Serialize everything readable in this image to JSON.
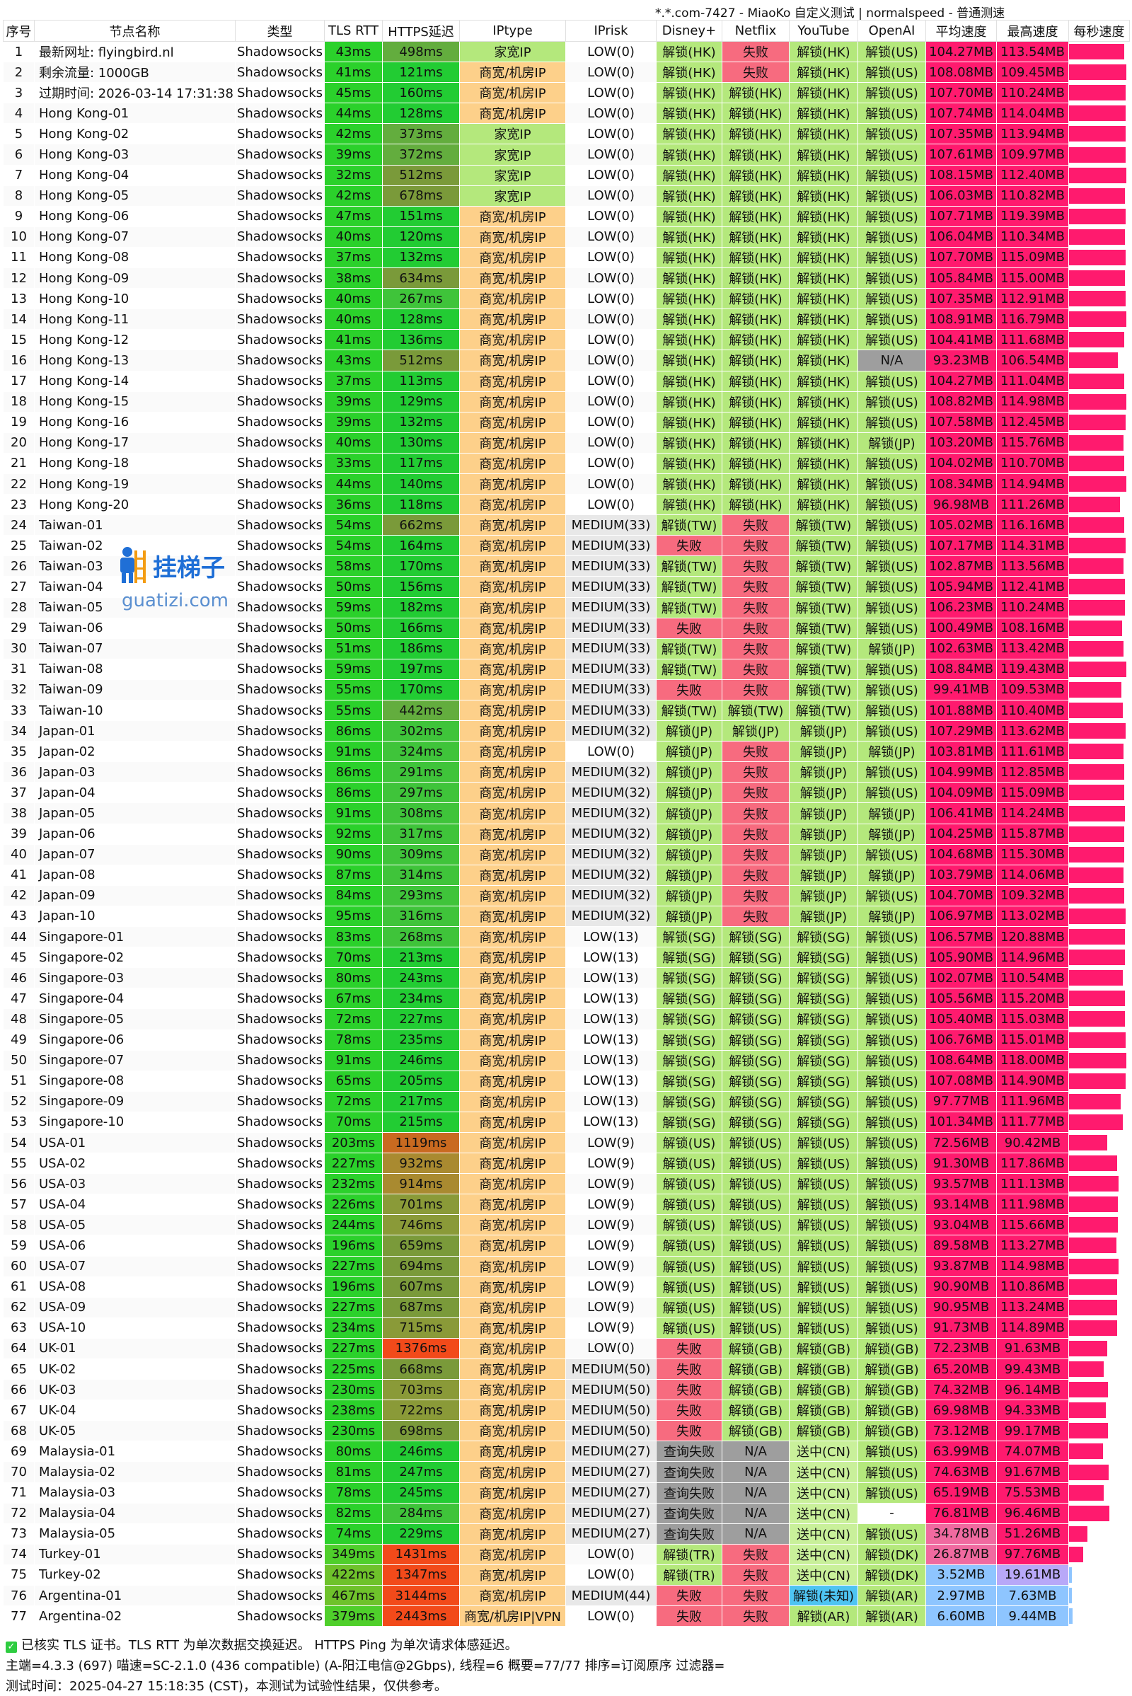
{
  "title": "*.*.com-7427 - MiaoKo 自定义测试 | normalspeed - 普通测速",
  "columns": [
    "序号",
    "节点名称",
    "类型",
    "TLS RTT",
    "HTTPS延迟",
    "IPtype",
    "IPrisk",
    "Disney+",
    "Netflix",
    "YouTube",
    "OpenAI",
    "平均速度",
    "最高速度",
    "每秒速度"
  ],
  "watermark": {
    "brand": "挂梯子",
    "domain": "guatizi.com"
  },
  "colors": {
    "green": "#19d419",
    "lightgreen": "#b4e87c",
    "orange": "#fdd08a",
    "red": "#f76b7f",
    "gray": "#9e9e9e",
    "pink": "#ff1a6e",
    "lavender": "#b8a8f8",
    "blue": "#8ec5ff"
  },
  "rows": [
    [
      "1",
      "最新网址: flyingbird.nl",
      "Shadowsocks",
      "43ms",
      "498ms",
      "家宽IP",
      "LOW(0)",
      "解锁(HK)",
      "失败",
      "解锁(HK)",
      "解锁(US)",
      "104.27MB",
      "113.54MB"
    ],
    [
      "2",
      "剩余流量: 1000GB",
      "Shadowsocks",
      "41ms",
      "121ms",
      "商宽/机房IP",
      "LOW(0)",
      "解锁(HK)",
      "失败",
      "解锁(HK)",
      "解锁(US)",
      "108.08MB",
      "109.45MB"
    ],
    [
      "3",
      "过期时间: 2026-03-14 17:31:38",
      "Shadowsocks",
      "45ms",
      "160ms",
      "商宽/机房IP",
      "LOW(0)",
      "解锁(HK)",
      "解锁(HK)",
      "解锁(HK)",
      "解锁(US)",
      "107.70MB",
      "110.24MB"
    ],
    [
      "4",
      "Hong Kong-01",
      "Shadowsocks",
      "44ms",
      "128ms",
      "商宽/机房IP",
      "LOW(0)",
      "解锁(HK)",
      "解锁(HK)",
      "解锁(HK)",
      "解锁(US)",
      "107.74MB",
      "114.04MB"
    ],
    [
      "5",
      "Hong Kong-02",
      "Shadowsocks",
      "42ms",
      "373ms",
      "家宽IP",
      "LOW(0)",
      "解锁(HK)",
      "解锁(HK)",
      "解锁(HK)",
      "解锁(US)",
      "107.35MB",
      "113.94MB"
    ],
    [
      "6",
      "Hong Kong-03",
      "Shadowsocks",
      "39ms",
      "372ms",
      "家宽IP",
      "LOW(0)",
      "解锁(HK)",
      "解锁(HK)",
      "解锁(HK)",
      "解锁(US)",
      "107.61MB",
      "109.97MB"
    ],
    [
      "7",
      "Hong Kong-04",
      "Shadowsocks",
      "32ms",
      "512ms",
      "家宽IP",
      "LOW(0)",
      "解锁(HK)",
      "解锁(HK)",
      "解锁(HK)",
      "解锁(US)",
      "108.15MB",
      "112.40MB"
    ],
    [
      "8",
      "Hong Kong-05",
      "Shadowsocks",
      "42ms",
      "678ms",
      "家宽IP",
      "LOW(0)",
      "解锁(HK)",
      "解锁(HK)",
      "解锁(HK)",
      "解锁(US)",
      "106.03MB",
      "110.82MB"
    ],
    [
      "9",
      "Hong Kong-06",
      "Shadowsocks",
      "47ms",
      "151ms",
      "商宽/机房IP",
      "LOW(0)",
      "解锁(HK)",
      "解锁(HK)",
      "解锁(HK)",
      "解锁(US)",
      "107.71MB",
      "119.39MB"
    ],
    [
      "10",
      "Hong Kong-07",
      "Shadowsocks",
      "40ms",
      "120ms",
      "商宽/机房IP",
      "LOW(0)",
      "解锁(HK)",
      "解锁(HK)",
      "解锁(HK)",
      "解锁(US)",
      "106.04MB",
      "110.34MB"
    ],
    [
      "11",
      "Hong Kong-08",
      "Shadowsocks",
      "37ms",
      "132ms",
      "商宽/机房IP",
      "LOW(0)",
      "解锁(HK)",
      "解锁(HK)",
      "解锁(HK)",
      "解锁(US)",
      "107.70MB",
      "115.09MB"
    ],
    [
      "12",
      "Hong Kong-09",
      "Shadowsocks",
      "38ms",
      "634ms",
      "商宽/机房IP",
      "LOW(0)",
      "解锁(HK)",
      "解锁(HK)",
      "解锁(HK)",
      "解锁(US)",
      "105.84MB",
      "115.00MB"
    ],
    [
      "13",
      "Hong Kong-10",
      "Shadowsocks",
      "40ms",
      "267ms",
      "商宽/机房IP",
      "LOW(0)",
      "解锁(HK)",
      "解锁(HK)",
      "解锁(HK)",
      "解锁(US)",
      "107.35MB",
      "112.91MB"
    ],
    [
      "14",
      "Hong Kong-11",
      "Shadowsocks",
      "40ms",
      "128ms",
      "商宽/机房IP",
      "LOW(0)",
      "解锁(HK)",
      "解锁(HK)",
      "解锁(HK)",
      "解锁(US)",
      "108.91MB",
      "116.79MB"
    ],
    [
      "15",
      "Hong Kong-12",
      "Shadowsocks",
      "41ms",
      "136ms",
      "商宽/机房IP",
      "LOW(0)",
      "解锁(HK)",
      "解锁(HK)",
      "解锁(HK)",
      "解锁(US)",
      "104.41MB",
      "111.68MB"
    ],
    [
      "16",
      "Hong Kong-13",
      "Shadowsocks",
      "43ms",
      "512ms",
      "商宽/机房IP",
      "LOW(0)",
      "解锁(HK)",
      "解锁(HK)",
      "解锁(HK)",
      "N/A",
      "93.23MB",
      "106.54MB"
    ],
    [
      "17",
      "Hong Kong-14",
      "Shadowsocks",
      "37ms",
      "113ms",
      "商宽/机房IP",
      "LOW(0)",
      "解锁(HK)",
      "解锁(HK)",
      "解锁(HK)",
      "解锁(US)",
      "104.27MB",
      "111.04MB"
    ],
    [
      "18",
      "Hong Kong-15",
      "Shadowsocks",
      "39ms",
      "129ms",
      "商宽/机房IP",
      "LOW(0)",
      "解锁(HK)",
      "解锁(HK)",
      "解锁(HK)",
      "解锁(US)",
      "108.82MB",
      "114.98MB"
    ],
    [
      "19",
      "Hong Kong-16",
      "Shadowsocks",
      "39ms",
      "132ms",
      "商宽/机房IP",
      "LOW(0)",
      "解锁(HK)",
      "解锁(HK)",
      "解锁(HK)",
      "解锁(US)",
      "107.58MB",
      "112.45MB"
    ],
    [
      "20",
      "Hong Kong-17",
      "Shadowsocks",
      "40ms",
      "130ms",
      "商宽/机房IP",
      "LOW(0)",
      "解锁(HK)",
      "解锁(HK)",
      "解锁(HK)",
      "解锁(JP)",
      "103.20MB",
      "115.76MB"
    ],
    [
      "21",
      "Hong Kong-18",
      "Shadowsocks",
      "33ms",
      "117ms",
      "商宽/机房IP",
      "LOW(0)",
      "解锁(HK)",
      "解锁(HK)",
      "解锁(HK)",
      "解锁(US)",
      "104.02MB",
      "110.70MB"
    ],
    [
      "22",
      "Hong Kong-19",
      "Shadowsocks",
      "44ms",
      "140ms",
      "商宽/机房IP",
      "LOW(0)",
      "解锁(HK)",
      "解锁(HK)",
      "解锁(HK)",
      "解锁(US)",
      "108.34MB",
      "114.94MB"
    ],
    [
      "23",
      "Hong Kong-20",
      "Shadowsocks",
      "36ms",
      "118ms",
      "商宽/机房IP",
      "LOW(0)",
      "解锁(HK)",
      "解锁(HK)",
      "解锁(HK)",
      "解锁(US)",
      "96.98MB",
      "111.26MB"
    ],
    [
      "24",
      "Taiwan-01",
      "Shadowsocks",
      "54ms",
      "662ms",
      "商宽/机房IP",
      "MEDIUM(33)",
      "解锁(TW)",
      "失败",
      "解锁(TW)",
      "解锁(US)",
      "105.02MB",
      "116.16MB"
    ],
    [
      "25",
      "Taiwan-02",
      "Shadowsocks",
      "54ms",
      "164ms",
      "商宽/机房IP",
      "MEDIUM(33)",
      "失败",
      "失败",
      "解锁(TW)",
      "解锁(US)",
      "107.17MB",
      "114.31MB"
    ],
    [
      "26",
      "Taiwan-03",
      "Shadowsocks",
      "58ms",
      "170ms",
      "商宽/机房IP",
      "MEDIUM(33)",
      "解锁(TW)",
      "失败",
      "解锁(TW)",
      "解锁(US)",
      "102.87MB",
      "113.56MB"
    ],
    [
      "27",
      "Taiwan-04",
      "Shadowsocks",
      "50ms",
      "156ms",
      "商宽/机房IP",
      "MEDIUM(33)",
      "解锁(TW)",
      "失败",
      "解锁(TW)",
      "解锁(US)",
      "105.94MB",
      "112.41MB"
    ],
    [
      "28",
      "Taiwan-05",
      "Shadowsocks",
      "59ms",
      "182ms",
      "商宽/机房IP",
      "MEDIUM(33)",
      "解锁(TW)",
      "失败",
      "解锁(TW)",
      "解锁(US)",
      "106.23MB",
      "110.24MB"
    ],
    [
      "29",
      "Taiwan-06",
      "Shadowsocks",
      "50ms",
      "166ms",
      "商宽/机房IP",
      "MEDIUM(33)",
      "失败",
      "失败",
      "解锁(TW)",
      "解锁(US)",
      "100.49MB",
      "108.16MB"
    ],
    [
      "30",
      "Taiwan-07",
      "Shadowsocks",
      "51ms",
      "186ms",
      "商宽/机房IP",
      "MEDIUM(33)",
      "解锁(TW)",
      "失败",
      "解锁(TW)",
      "解锁(JP)",
      "102.63MB",
      "113.42MB"
    ],
    [
      "31",
      "Taiwan-08",
      "Shadowsocks",
      "59ms",
      "197ms",
      "商宽/机房IP",
      "MEDIUM(33)",
      "解锁(TW)",
      "失败",
      "解锁(TW)",
      "解锁(US)",
      "108.84MB",
      "119.43MB"
    ],
    [
      "32",
      "Taiwan-09",
      "Shadowsocks",
      "55ms",
      "170ms",
      "商宽/机房IP",
      "MEDIUM(33)",
      "失败",
      "失败",
      "解锁(TW)",
      "解锁(US)",
      "99.41MB",
      "109.53MB"
    ],
    [
      "33",
      "Taiwan-10",
      "Shadowsocks",
      "55ms",
      "442ms",
      "商宽/机房IP",
      "MEDIUM(33)",
      "解锁(TW)",
      "解锁(TW)",
      "解锁(TW)",
      "解锁(US)",
      "101.88MB",
      "110.40MB"
    ],
    [
      "34",
      "Japan-01",
      "Shadowsocks",
      "86ms",
      "302ms",
      "商宽/机房IP",
      "MEDIUM(32)",
      "解锁(JP)",
      "解锁(JP)",
      "解锁(JP)",
      "解锁(US)",
      "107.29MB",
      "113.62MB"
    ],
    [
      "35",
      "Japan-02",
      "Shadowsocks",
      "91ms",
      "324ms",
      "商宽/机房IP",
      "LOW(0)",
      "解锁(JP)",
      "失败",
      "解锁(JP)",
      "解锁(JP)",
      "103.81MB",
      "111.61MB"
    ],
    [
      "36",
      "Japan-03",
      "Shadowsocks",
      "86ms",
      "291ms",
      "商宽/机房IP",
      "MEDIUM(32)",
      "解锁(JP)",
      "失败",
      "解锁(JP)",
      "解锁(US)",
      "104.99MB",
      "112.85MB"
    ],
    [
      "37",
      "Japan-04",
      "Shadowsocks",
      "86ms",
      "297ms",
      "商宽/机房IP",
      "MEDIUM(32)",
      "解锁(JP)",
      "失败",
      "解锁(JP)",
      "解锁(US)",
      "104.09MB",
      "115.09MB"
    ],
    [
      "38",
      "Japan-05",
      "Shadowsocks",
      "91ms",
      "308ms",
      "商宽/机房IP",
      "MEDIUM(32)",
      "解锁(JP)",
      "失败",
      "解锁(JP)",
      "解锁(JP)",
      "106.41MB",
      "114.24MB"
    ],
    [
      "39",
      "Japan-06",
      "Shadowsocks",
      "92ms",
      "317ms",
      "商宽/机房IP",
      "MEDIUM(32)",
      "解锁(JP)",
      "失败",
      "解锁(JP)",
      "解锁(JP)",
      "104.25MB",
      "115.87MB"
    ],
    [
      "40",
      "Japan-07",
      "Shadowsocks",
      "90ms",
      "309ms",
      "商宽/机房IP",
      "MEDIUM(32)",
      "解锁(JP)",
      "失败",
      "解锁(JP)",
      "解锁(US)",
      "104.68MB",
      "115.30MB"
    ],
    [
      "41",
      "Japan-08",
      "Shadowsocks",
      "87ms",
      "314ms",
      "商宽/机房IP",
      "MEDIUM(32)",
      "解锁(JP)",
      "失败",
      "解锁(JP)",
      "解锁(JP)",
      "103.79MB",
      "114.06MB"
    ],
    [
      "42",
      "Japan-09",
      "Shadowsocks",
      "84ms",
      "293ms",
      "商宽/机房IP",
      "MEDIUM(32)",
      "解锁(JP)",
      "失败",
      "解锁(JP)",
      "解锁(US)",
      "104.70MB",
      "109.32MB"
    ],
    [
      "43",
      "Japan-10",
      "Shadowsocks",
      "95ms",
      "316ms",
      "商宽/机房IP",
      "MEDIUM(32)",
      "解锁(JP)",
      "失败",
      "解锁(JP)",
      "解锁(JP)",
      "106.97MB",
      "113.02MB"
    ],
    [
      "44",
      "Singapore-01",
      "Shadowsocks",
      "83ms",
      "268ms",
      "商宽/机房IP",
      "LOW(13)",
      "解锁(SG)",
      "解锁(SG)",
      "解锁(SG)",
      "解锁(US)",
      "106.57MB",
      "120.88MB"
    ],
    [
      "45",
      "Singapore-02",
      "Shadowsocks",
      "70ms",
      "213ms",
      "商宽/机房IP",
      "LOW(13)",
      "解锁(SG)",
      "解锁(SG)",
      "解锁(SG)",
      "解锁(US)",
      "105.90MB",
      "114.96MB"
    ],
    [
      "46",
      "Singapore-03",
      "Shadowsocks",
      "80ms",
      "243ms",
      "商宽/机房IP",
      "LOW(13)",
      "解锁(SG)",
      "解锁(SG)",
      "解锁(SG)",
      "解锁(US)",
      "102.07MB",
      "110.54MB"
    ],
    [
      "47",
      "Singapore-04",
      "Shadowsocks",
      "67ms",
      "234ms",
      "商宽/机房IP",
      "LOW(13)",
      "解锁(SG)",
      "解锁(SG)",
      "解锁(SG)",
      "解锁(US)",
      "105.56MB",
      "115.20MB"
    ],
    [
      "48",
      "Singapore-05",
      "Shadowsocks",
      "72ms",
      "227ms",
      "商宽/机房IP",
      "LOW(13)",
      "解锁(SG)",
      "解锁(SG)",
      "解锁(SG)",
      "解锁(US)",
      "105.40MB",
      "115.03MB"
    ],
    [
      "49",
      "Singapore-06",
      "Shadowsocks",
      "78ms",
      "235ms",
      "商宽/机房IP",
      "LOW(13)",
      "解锁(SG)",
      "解锁(SG)",
      "解锁(SG)",
      "解锁(US)",
      "106.76MB",
      "115.01MB"
    ],
    [
      "50",
      "Singapore-07",
      "Shadowsocks",
      "91ms",
      "246ms",
      "商宽/机房IP",
      "LOW(13)",
      "解锁(SG)",
      "解锁(SG)",
      "解锁(SG)",
      "解锁(US)",
      "108.64MB",
      "118.00MB"
    ],
    [
      "51",
      "Singapore-08",
      "Shadowsocks",
      "65ms",
      "205ms",
      "商宽/机房IP",
      "LOW(13)",
      "解锁(SG)",
      "解锁(SG)",
      "解锁(SG)",
      "解锁(US)",
      "107.08MB",
      "114.90MB"
    ],
    [
      "52",
      "Singapore-09",
      "Shadowsocks",
      "72ms",
      "217ms",
      "商宽/机房IP",
      "LOW(13)",
      "解锁(SG)",
      "解锁(SG)",
      "解锁(SG)",
      "解锁(US)",
      "97.77MB",
      "111.96MB"
    ],
    [
      "53",
      "Singapore-10",
      "Shadowsocks",
      "70ms",
      "215ms",
      "商宽/机房IP",
      "LOW(13)",
      "解锁(SG)",
      "解锁(SG)",
      "解锁(SG)",
      "解锁(US)",
      "101.34MB",
      "111.77MB"
    ],
    [
      "54",
      "USA-01",
      "Shadowsocks",
      "203ms",
      "1119ms",
      "商宽/机房IP",
      "LOW(9)",
      "解锁(US)",
      "解锁(US)",
      "解锁(US)",
      "解锁(US)",
      "72.56MB",
      "90.42MB"
    ],
    [
      "55",
      "USA-02",
      "Shadowsocks",
      "227ms",
      "932ms",
      "商宽/机房IP",
      "LOW(9)",
      "解锁(US)",
      "解锁(US)",
      "解锁(US)",
      "解锁(US)",
      "91.30MB",
      "117.86MB"
    ],
    [
      "56",
      "USA-03",
      "Shadowsocks",
      "232ms",
      "914ms",
      "商宽/机房IP",
      "LOW(9)",
      "解锁(US)",
      "解锁(US)",
      "解锁(US)",
      "解锁(US)",
      "93.57MB",
      "111.13MB"
    ],
    [
      "57",
      "USA-04",
      "Shadowsocks",
      "226ms",
      "701ms",
      "商宽/机房IP",
      "LOW(9)",
      "解锁(US)",
      "解锁(US)",
      "解锁(US)",
      "解锁(US)",
      "93.14MB",
      "111.98MB"
    ],
    [
      "58",
      "USA-05",
      "Shadowsocks",
      "244ms",
      "746ms",
      "商宽/机房IP",
      "LOW(9)",
      "解锁(US)",
      "解锁(US)",
      "解锁(US)",
      "解锁(US)",
      "93.04MB",
      "115.66MB"
    ],
    [
      "59",
      "USA-06",
      "Shadowsocks",
      "196ms",
      "659ms",
      "商宽/机房IP",
      "LOW(9)",
      "解锁(US)",
      "解锁(US)",
      "解锁(US)",
      "解锁(US)",
      "89.58MB",
      "113.27MB"
    ],
    [
      "60",
      "USA-07",
      "Shadowsocks",
      "227ms",
      "694ms",
      "商宽/机房IP",
      "LOW(9)",
      "解锁(US)",
      "解锁(US)",
      "解锁(US)",
      "解锁(US)",
      "93.87MB",
      "114.98MB"
    ],
    [
      "61",
      "USA-08",
      "Shadowsocks",
      "196ms",
      "607ms",
      "商宽/机房IP",
      "LOW(9)",
      "解锁(US)",
      "解锁(US)",
      "解锁(US)",
      "解锁(US)",
      "90.90MB",
      "110.86MB"
    ],
    [
      "62",
      "USA-09",
      "Shadowsocks",
      "227ms",
      "687ms",
      "商宽/机房IP",
      "LOW(9)",
      "解锁(US)",
      "解锁(US)",
      "解锁(US)",
      "解锁(US)",
      "90.95MB",
      "113.24MB"
    ],
    [
      "63",
      "USA-10",
      "Shadowsocks",
      "234ms",
      "715ms",
      "商宽/机房IP",
      "LOW(9)",
      "解锁(US)",
      "解锁(US)",
      "解锁(US)",
      "解锁(US)",
      "91.73MB",
      "114.89MB"
    ],
    [
      "64",
      "UK-01",
      "Shadowsocks",
      "227ms",
      "1376ms",
      "商宽/机房IP",
      "LOW(0)",
      "失败",
      "解锁(GB)",
      "解锁(GB)",
      "解锁(GB)",
      "72.23MB",
      "91.63MB"
    ],
    [
      "65",
      "UK-02",
      "Shadowsocks",
      "225ms",
      "668ms",
      "商宽/机房IP",
      "MEDIUM(50)",
      "失败",
      "解锁(GB)",
      "解锁(GB)",
      "解锁(GB)",
      "65.20MB",
      "99.43MB"
    ],
    [
      "66",
      "UK-03",
      "Shadowsocks",
      "230ms",
      "703ms",
      "商宽/机房IP",
      "MEDIUM(50)",
      "失败",
      "解锁(GB)",
      "解锁(GB)",
      "解锁(GB)",
      "74.32MB",
      "96.14MB"
    ],
    [
      "67",
      "UK-04",
      "Shadowsocks",
      "238ms",
      "722ms",
      "商宽/机房IP",
      "MEDIUM(50)",
      "失败",
      "解锁(GB)",
      "解锁(GB)",
      "解锁(GB)",
      "69.98MB",
      "94.33MB"
    ],
    [
      "68",
      "UK-05",
      "Shadowsocks",
      "230ms",
      "698ms",
      "商宽/机房IP",
      "MEDIUM(50)",
      "失败",
      "解锁(GB)",
      "解锁(GB)",
      "解锁(GB)",
      "73.12MB",
      "99.17MB"
    ],
    [
      "69",
      "Malaysia-01",
      "Shadowsocks",
      "80ms",
      "246ms",
      "商宽/机房IP",
      "MEDIUM(27)",
      "查询失败",
      "N/A",
      "送中(CN)",
      "解锁(US)",
      "63.99MB",
      "74.07MB"
    ],
    [
      "70",
      "Malaysia-02",
      "Shadowsocks",
      "81ms",
      "247ms",
      "商宽/机房IP",
      "MEDIUM(27)",
      "查询失败",
      "N/A",
      "送中(CN)",
      "解锁(US)",
      "74.63MB",
      "91.67MB"
    ],
    [
      "71",
      "Malaysia-03",
      "Shadowsocks",
      "78ms",
      "245ms",
      "商宽/机房IP",
      "MEDIUM(27)",
      "查询失败",
      "N/A",
      "送中(CN)",
      "解锁(US)",
      "65.19MB",
      "75.53MB"
    ],
    [
      "72",
      "Malaysia-04",
      "Shadowsocks",
      "82ms",
      "284ms",
      "商宽/机房IP",
      "MEDIUM(27)",
      "查询失败",
      "N/A",
      "送中(CN)",
      "-",
      "76.81MB",
      "96.46MB"
    ],
    [
      "73",
      "Malaysia-05",
      "Shadowsocks",
      "74ms",
      "229ms",
      "商宽/机房IP",
      "MEDIUM(27)",
      "查询失败",
      "N/A",
      "送中(CN)",
      "解锁(US)",
      "34.78MB",
      "51.26MB"
    ],
    [
      "74",
      "Turkey-01",
      "Shadowsocks",
      "349ms",
      "1431ms",
      "商宽/机房IP",
      "LOW(0)",
      "解锁(TR)",
      "失败",
      "送中(CN)",
      "解锁(DK)",
      "26.87MB",
      "97.76MB"
    ],
    [
      "75",
      "Turkey-02",
      "Shadowsocks",
      "422ms",
      "1347ms",
      "商宽/机房IP",
      "LOW(0)",
      "解锁(TR)",
      "失败",
      "送中(CN)",
      "解锁(DK)",
      "3.52MB",
      "19.61MB"
    ],
    [
      "76",
      "Argentina-01",
      "Shadowsocks",
      "467ms",
      "3144ms",
      "商宽/机房IP",
      "MEDIUM(44)",
      "失败",
      "失败",
      "解锁(未知)",
      "解锁(AR)",
      "2.97MB",
      "7.63MB"
    ],
    [
      "77",
      "Argentina-02",
      "Shadowsocks",
      "379ms",
      "2443ms",
      "商宽/机房IP|VPN",
      "LOW(0)",
      "失败",
      "失败",
      "解锁(AR)",
      "解锁(AR)",
      "6.60MB",
      "9.44MB"
    ]
  ],
  "footer": {
    "line1": "已核实 TLS 证书。TLS RTT 为单次数据交换延迟。 HTTPS Ping 为单次请求体感延迟。",
    "line2": "主端=4.3.3 (697) 喵速=SC-2.1.0 (436 compatible) (A-阳江电信@2Gbps), 线程=6 概要=77/77 排序=订阅原序 过滤器=",
    "line3": "测试时间：2025-04-27 15:18:35 (CST)，本测试为试验性结果，仅供参考。"
  }
}
